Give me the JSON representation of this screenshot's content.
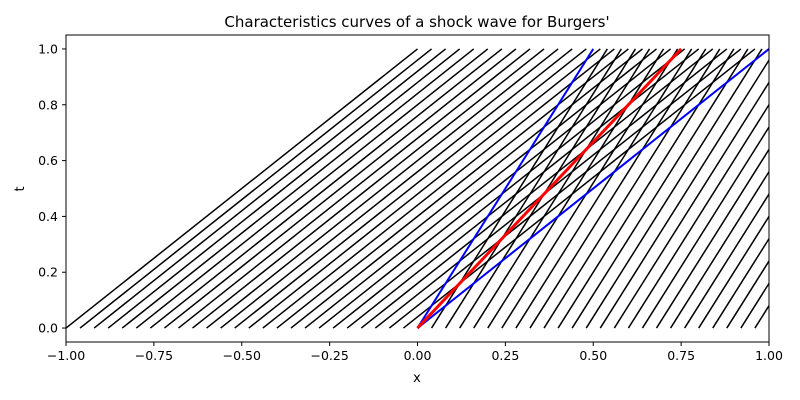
{
  "chart_data": {
    "type": "line",
    "title": "Characteristics curves of a shock wave for Burgers'",
    "xlabel": "x",
    "ylabel": "t",
    "xlim": [
      -1.0,
      1.0
    ],
    "ylim": [
      -0.05,
      1.05
    ],
    "xticks": [
      "−1.00",
      "−0.75",
      "−0.50",
      "−0.25",
      "0.00",
      "0.25",
      "0.50",
      "0.75",
      "1.00"
    ],
    "xtick_values": [
      -1.0,
      -0.75,
      -0.5,
      -0.25,
      0.0,
      0.25,
      0.5,
      0.75,
      1.0
    ],
    "yticks": [
      "0.0",
      "0.2",
      "0.4",
      "0.6",
      "0.8",
      "1.0"
    ],
    "ytick_values": [
      0.0,
      0.2,
      0.4,
      0.6,
      0.8,
      1.0
    ],
    "grid": false,
    "legend": "none",
    "colors": {
      "characteristics": "#000000",
      "fan_bounds": "#0000ff",
      "shock": "#ff0000"
    },
    "characteristics_left": {
      "x0": [
        -1.0,
        -0.96,
        -0.92,
        -0.88,
        -0.84,
        -0.8,
        -0.76,
        -0.72,
        -0.68,
        -0.64,
        -0.6,
        -0.56,
        -0.52,
        -0.48,
        -0.44,
        -0.4,
        -0.36,
        -0.32,
        -0.28,
        -0.24,
        -0.2,
        -0.16,
        -0.12,
        -0.08,
        -0.04,
        0.0
      ],
      "speed": 1.0
    },
    "characteristics_right": {
      "x0": [
        0.04,
        0.08,
        0.12,
        0.16,
        0.2,
        0.24,
        0.28,
        0.32,
        0.36,
        0.4,
        0.44,
        0.48,
        0.52,
        0.56,
        0.6,
        0.64,
        0.68,
        0.72,
        0.76,
        0.8,
        0.84,
        0.88,
        0.92,
        0.96,
        1.0
      ],
      "speed": 0.5
    },
    "fan_bounds": [
      {
        "x": [
          0.0,
          0.5
        ],
        "t": [
          0.0,
          1.0
        ]
      },
      {
        "x": [
          0.0,
          1.0
        ],
        "t": [
          0.0,
          1.0
        ]
      }
    ],
    "shock": {
      "x": [
        0.0,
        0.75
      ],
      "t": [
        0.0,
        1.0
      ]
    }
  }
}
